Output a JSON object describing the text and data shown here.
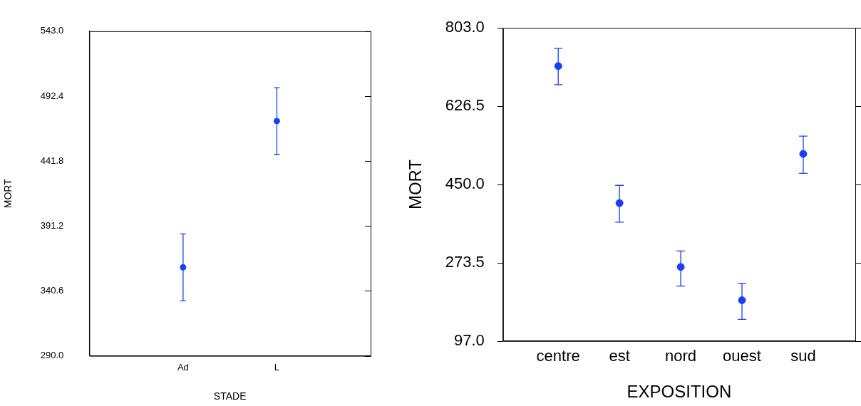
{
  "chart_data": [
    {
      "type": "scatter",
      "xlabel": "STADE",
      "ylabel": "MORT",
      "categories": [
        "Ad",
        "L"
      ],
      "series": [
        {
          "color": "#1a3ff5",
          "values": [
            359,
            473
          ],
          "errors": [
            [
              333,
              385
            ],
            [
              447,
              499
            ]
          ]
        }
      ],
      "ylim": [
        290,
        543
      ],
      "yticks": [
        {
          "value": 290,
          "label": "290.0"
        },
        {
          "value": 340.6,
          "label": "340.6"
        },
        {
          "value": 391.2,
          "label": "391.2"
        },
        {
          "value": 441.8,
          "label": "441.8"
        },
        {
          "value": 492.4,
          "label": "492.4"
        },
        {
          "value": 543,
          "label": "543.0"
        }
      ],
      "grid": false,
      "legend": false,
      "marker": "circle"
    },
    {
      "type": "scatter",
      "xlabel": "EXPOSITION",
      "ylabel": "MORT",
      "categories": [
        "centre",
        "est",
        "nord",
        "ouest",
        "sud"
      ],
      "series": [
        {
          "color": "#1a3ff5",
          "values": [
            717,
            408,
            264,
            189,
            519
          ],
          "errors": [
            [
              675,
              757
            ],
            [
              365,
              448
            ],
            [
              221,
              300
            ],
            [
              146,
              227
            ],
            [
              475,
              559
            ]
          ]
        }
      ],
      "ylim": [
        97,
        803
      ],
      "yticks": [
        {
          "value": 97,
          "label": "97.0"
        },
        {
          "value": 273.5,
          "label": "273.5"
        },
        {
          "value": 450,
          "label": "450.0"
        },
        {
          "value": 626.5,
          "label": "626.5"
        },
        {
          "value": 803,
          "label": "803.0"
        }
      ],
      "grid": false,
      "legend": false,
      "marker": "circle"
    }
  ]
}
